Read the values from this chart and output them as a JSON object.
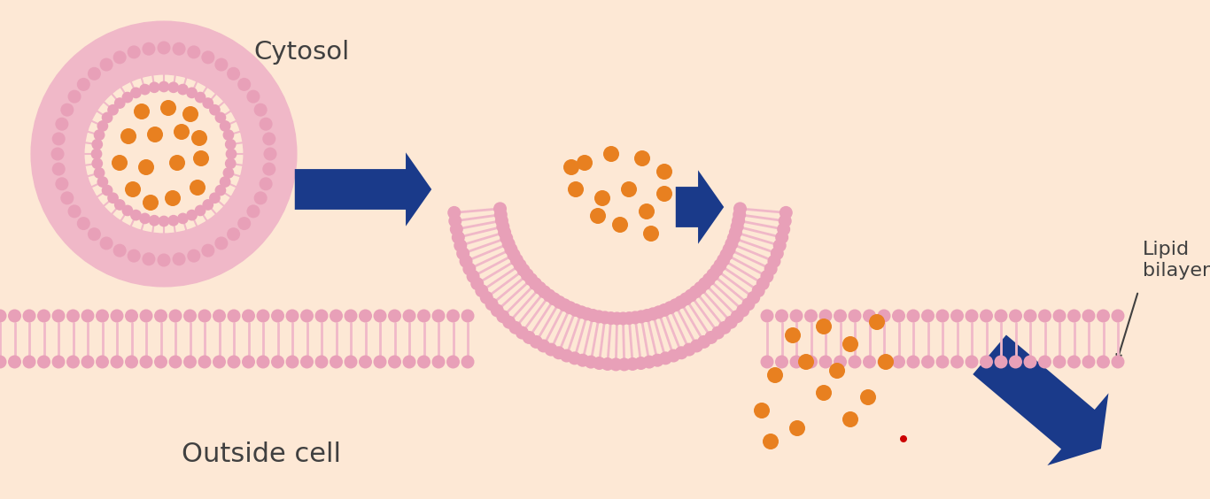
{
  "bg_color": "#fde8d5",
  "membrane_color": "#f0b8c8",
  "head_color": "#e8a0b8",
  "tail_color": "#f0b8c8",
  "cargo_color": "#e88020",
  "arrow_color": "#1a3a8a",
  "text_color": "#404040",
  "outside_cell_label": "Outside cell",
  "cytosol_label": "Cytosol",
  "lipid_bilayer_label": "Lipid\nbilayer",
  "fig_width": 13.66,
  "fig_height": 5.64,
  "dpi": 100
}
